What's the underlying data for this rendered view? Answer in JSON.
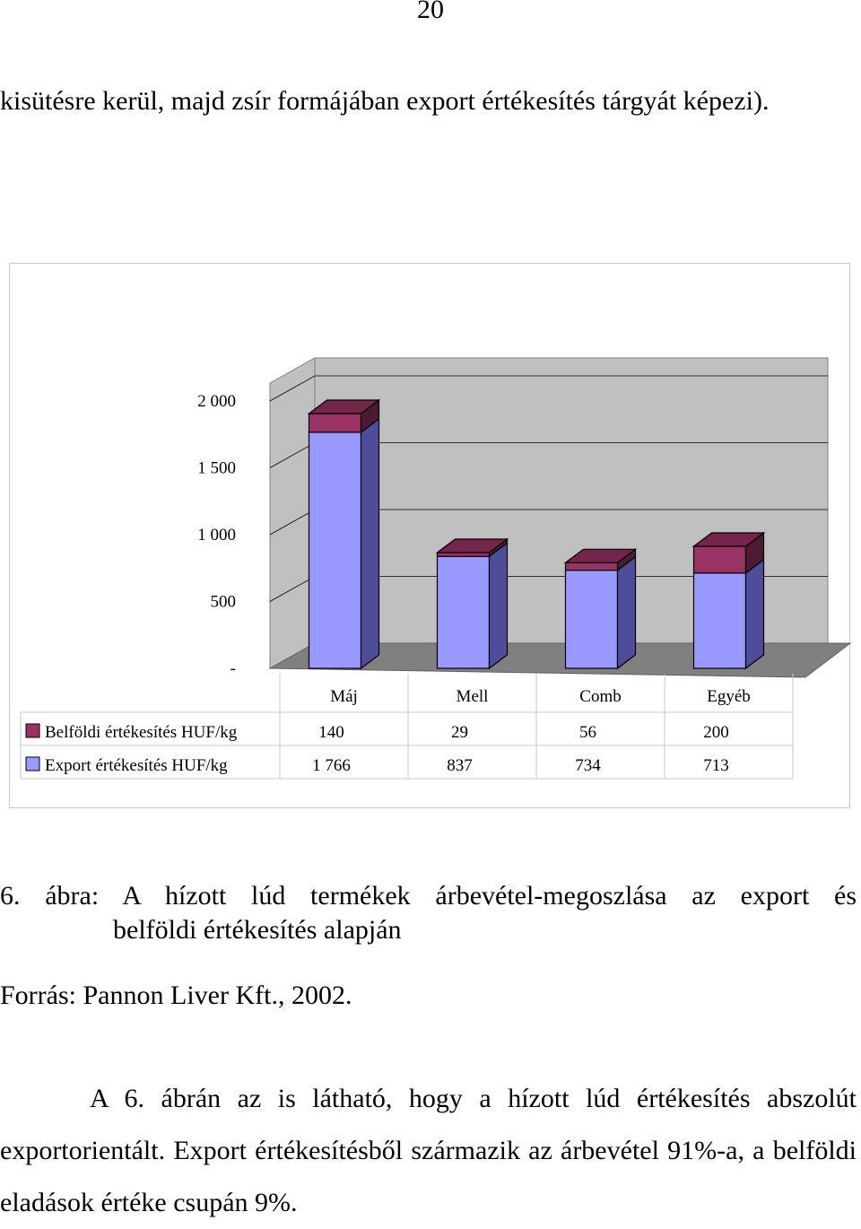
{
  "page_number": "20",
  "intro_text": "kisütésre kerül, majd zsír formájában export értékesítés tárgyát képezi).",
  "chart_data": {
    "type": "bar",
    "stacked": true,
    "three_d": true,
    "categories": [
      "Máj",
      "Mell",
      "Comb",
      "Egyéb"
    ],
    "series": [
      {
        "name": "Export értékesítés HUF/kg",
        "values": [
          1766,
          837,
          734,
          713
        ],
        "value_labels": [
          "1 766",
          "837",
          "734",
          "713"
        ],
        "color": "#9999ff"
      },
      {
        "name": "Belföldi értékesítés HUF/kg",
        "values": [
          140,
          29,
          56,
          200
        ],
        "value_labels": [
          "140",
          "29",
          "56",
          "200"
        ],
        "color": "#993366"
      }
    ],
    "y_ticks": [
      0,
      500,
      1000,
      1500,
      2000
    ],
    "y_tick_labels": [
      "-",
      "500",
      "1 000",
      "1 500",
      "2 000"
    ],
    "ylim": [
      0,
      2000
    ],
    "grid": true,
    "legend": "data-table-below"
  },
  "caption_line1": "6. ábra: A hízott lúd termékek árbevétel-megoszlása az export és",
  "caption_line2": "belföldi értékesítés alapján",
  "source": "Forrás: Pannon Liver Kft., 2002.",
  "outro_text": "A 6. ábrán az is látható, hogy a hízott lúd értékesítés abszolút exportorientált. Export értékesítésből származik az árbevétel 91%-a, a belföldi eladások értéke csupán 9%."
}
